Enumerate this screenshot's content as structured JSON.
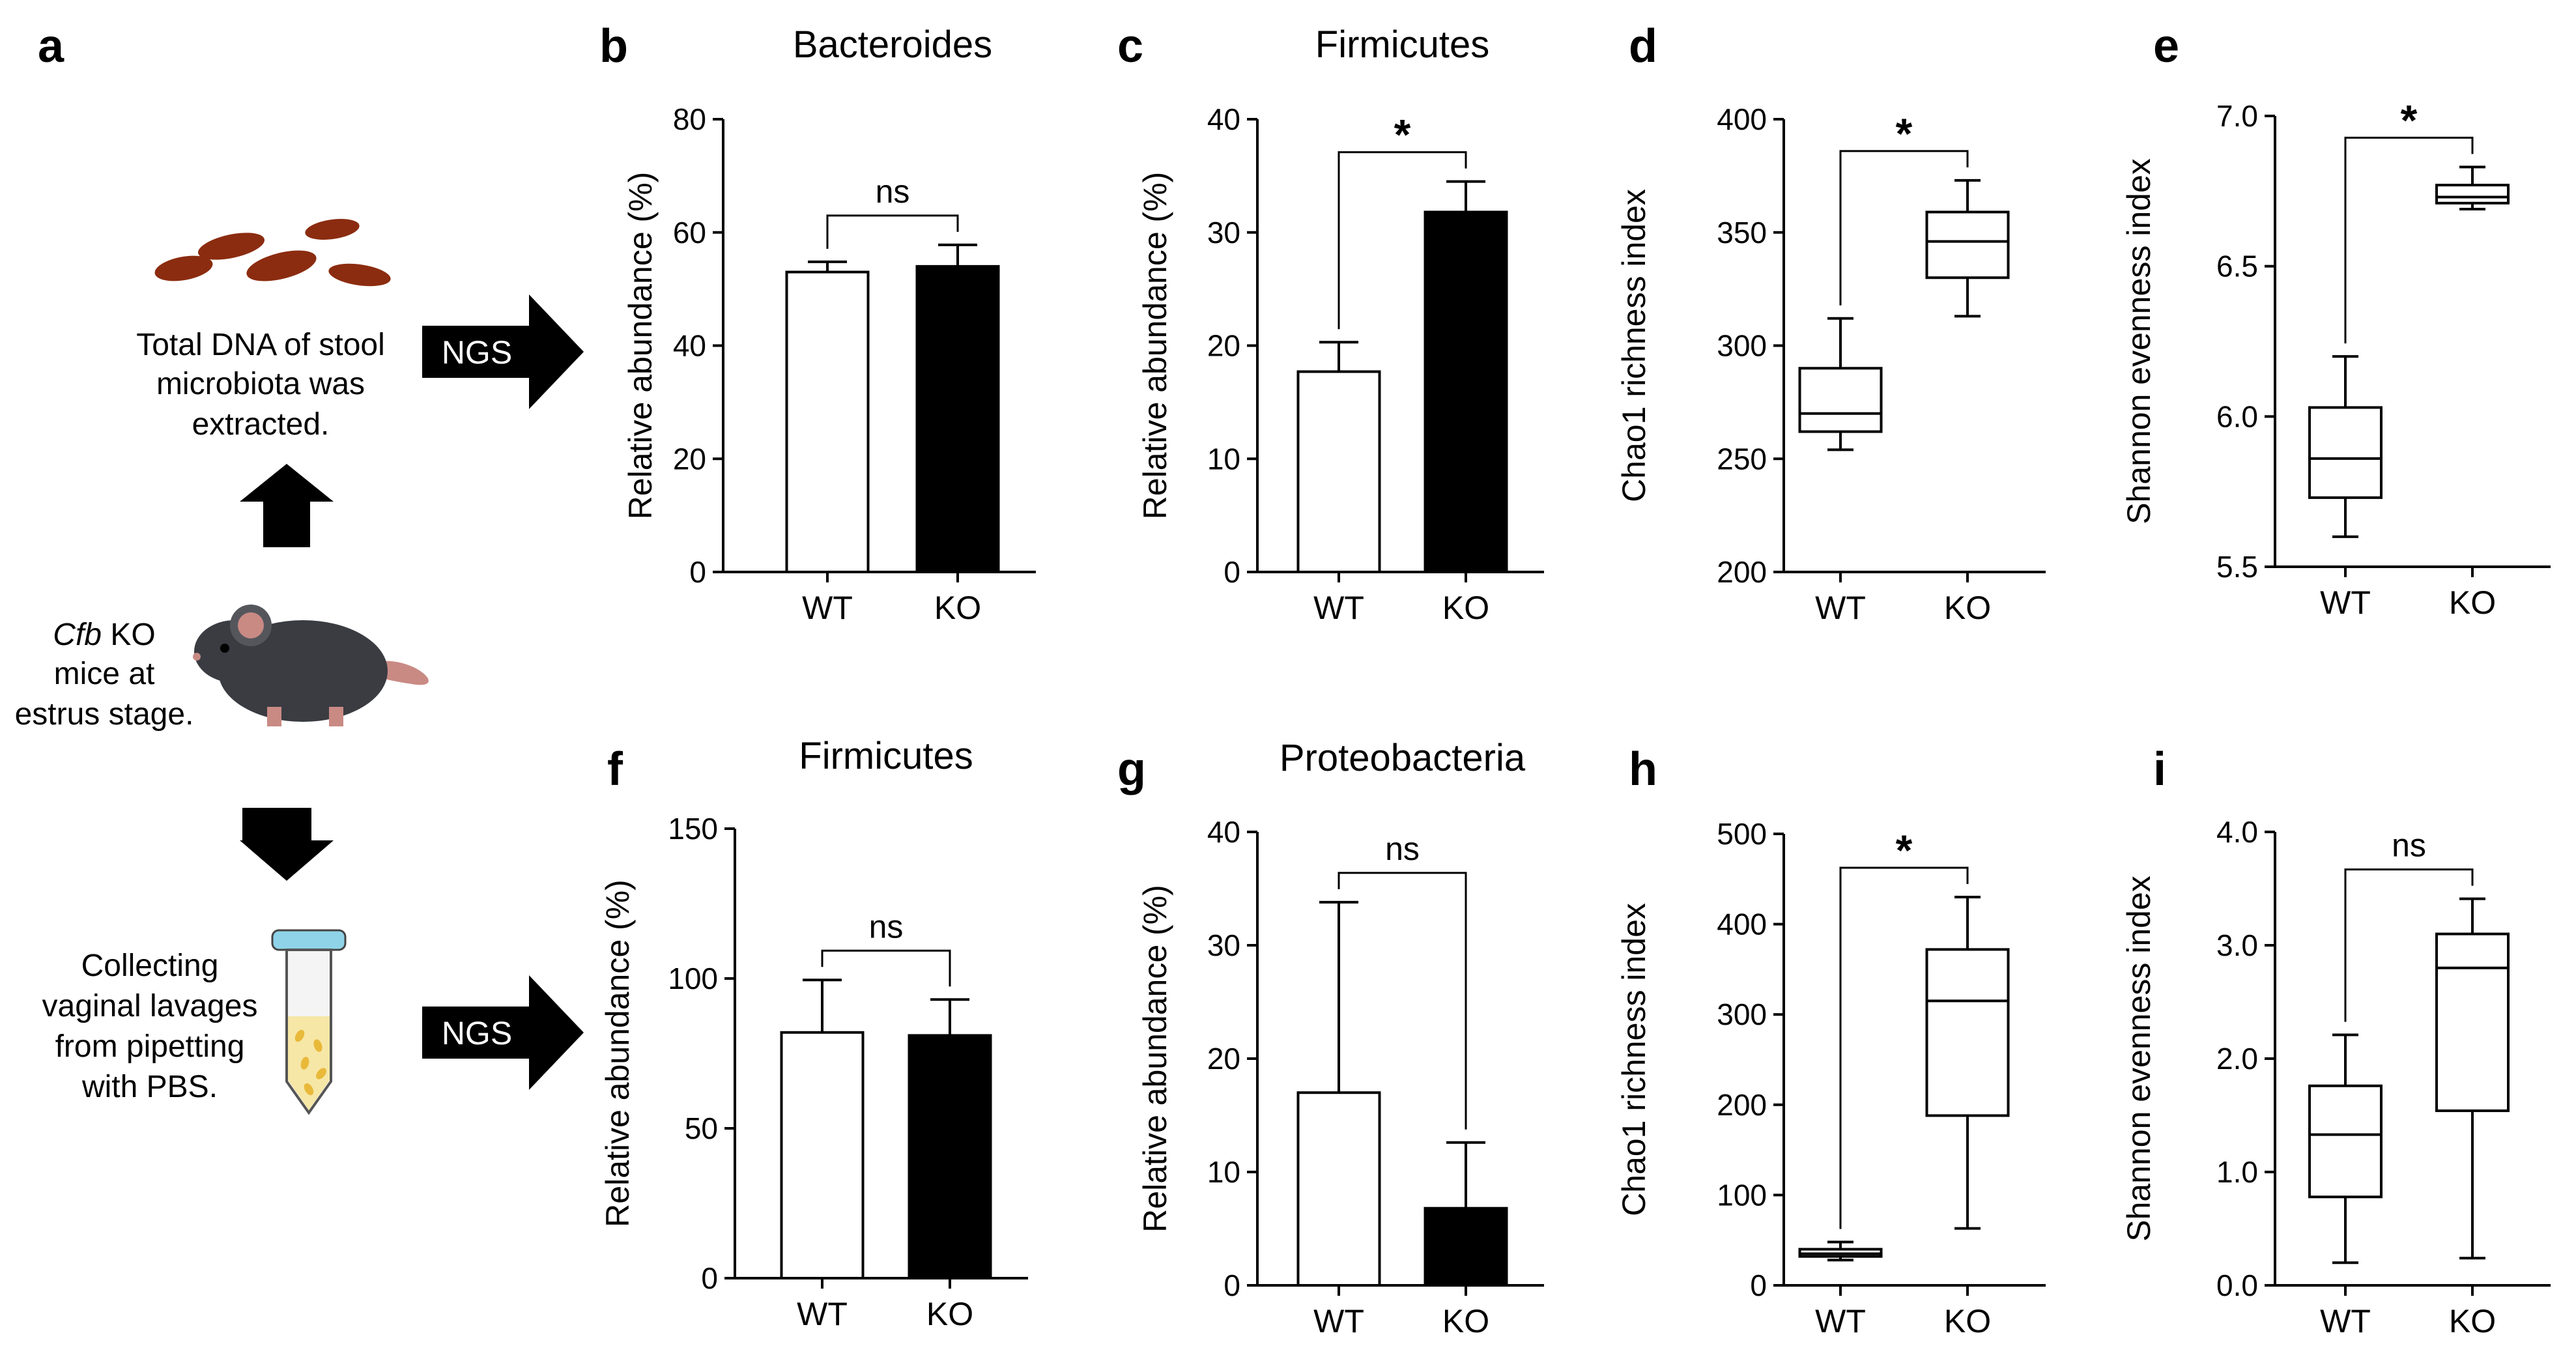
{
  "workflow": {
    "panel_letter": "a",
    "stool_caption": [
      "Total DNA of stool",
      "microbiota was",
      "extracted."
    ],
    "ngs_label": "NGS",
    "mouse_caption_line1_italic": "Cfb",
    "mouse_caption_line1_rest": " KO",
    "mouse_caption_rest": [
      "mice at",
      "estrus stage."
    ],
    "lavage_caption": [
      "Collecting",
      "vaginal lavages",
      "from pipetting",
      "with PBS."
    ],
    "colors": {
      "stool": "#8b2c10",
      "arrow": "#000000",
      "mouse_body": "#3a3c42",
      "mouse_ear": "#c98a84",
      "tube_cap": "#8fd3e8",
      "tube_fluid": "#f6e7a6",
      "cells": "#e9b93a"
    }
  },
  "chart_data": [
    {
      "panel": "b",
      "type": "bar",
      "title": "Bacteroides",
      "ylabel": "Relative abundance (%)",
      "ylim": [
        0,
        80
      ],
      "yticks": [
        "0",
        "20",
        "40",
        "60",
        "80"
      ],
      "categories": [
        "WT",
        "KO"
      ],
      "values": [
        53,
        54
      ],
      "errors": [
        1.8,
        3.8
      ],
      "fills": [
        "#ffffff",
        "#000000"
      ],
      "significance": "ns"
    },
    {
      "panel": "c",
      "type": "bar",
      "title": "Firmicutes",
      "ylabel": "Relative abundance (%)",
      "ylim": [
        0,
        40
      ],
      "yticks": [
        "0",
        "10",
        "20",
        "30",
        "40"
      ],
      "categories": [
        "WT",
        "KO"
      ],
      "values": [
        17.7,
        31.8
      ],
      "errors": [
        2.6,
        2.7
      ],
      "fills": [
        "#ffffff",
        "#000000"
      ],
      "significance": "*"
    },
    {
      "panel": "d",
      "type": "box",
      "title": "",
      "ylabel": "Chao1 richness index",
      "ylim": [
        200,
        400
      ],
      "yticks": [
        "200",
        "250",
        "300",
        "350",
        "400"
      ],
      "categories": [
        "WT",
        "KO"
      ],
      "boxes": [
        {
          "min": 254,
          "q1": 262,
          "median": 270,
          "q3": 290,
          "max": 312
        },
        {
          "min": 313,
          "q1": 330,
          "median": 346,
          "q3": 359,
          "max": 373
        }
      ],
      "significance": "*"
    },
    {
      "panel": "e",
      "type": "box",
      "title": "",
      "ylabel": "Shannon evenness index",
      "ylim": [
        5.5,
        7.0
      ],
      "yticks": [
        "5.5",
        "6.0",
        "6.5",
        "7.0"
      ],
      "categories": [
        "WT",
        "KO"
      ],
      "boxes": [
        {
          "min": 5.6,
          "q1": 5.73,
          "median": 5.86,
          "q3": 6.03,
          "max": 6.2
        },
        {
          "min": 6.69,
          "q1": 6.71,
          "median": 6.73,
          "q3": 6.77,
          "max": 6.83
        }
      ],
      "significance": "*"
    },
    {
      "panel": "f",
      "type": "bar",
      "title": "Firmicutes",
      "ylabel": "Relative abundance (%)",
      "ylim": [
        0,
        150
      ],
      "yticks": [
        "0",
        "50",
        "100",
        "150"
      ],
      "categories": [
        "WT",
        "KO"
      ],
      "values": [
        82,
        81
      ],
      "errors": [
        17.5,
        12
      ],
      "fills": [
        "#ffffff",
        "#000000"
      ],
      "significance": "ns"
    },
    {
      "panel": "g",
      "type": "bar",
      "title": "Proteobacteria",
      "ylabel": "Relative abundance (%)",
      "ylim": [
        0,
        40
      ],
      "yticks": [
        "0",
        "10",
        "20",
        "30",
        "40"
      ],
      "categories": [
        "WT",
        "KO"
      ],
      "values": [
        17,
        6.8
      ],
      "errors": [
        16.8,
        5.8
      ],
      "fills": [
        "#ffffff",
        "#000000"
      ],
      "significance": "ns"
    },
    {
      "panel": "h",
      "type": "box",
      "title": "",
      "ylabel": "Chao1 richness index",
      "ylim": [
        0,
        500
      ],
      "yticks": [
        "0",
        "100",
        "200",
        "300",
        "400",
        "500"
      ],
      "categories": [
        "WT",
        "KO"
      ],
      "boxes": [
        {
          "min": 28,
          "q1": 32,
          "median": 35,
          "q3": 40,
          "max": 48
        },
        {
          "min": 63,
          "q1": 188,
          "median": 315,
          "q3": 372,
          "max": 430
        }
      ],
      "significance": "*"
    },
    {
      "panel": "i",
      "type": "box",
      "title": "",
      "ylabel": "Shannon evenness index",
      "ylim": [
        0,
        4.0
      ],
      "yticks": [
        "0.0",
        "1.0",
        "2.0",
        "3.0",
        "4.0"
      ],
      "categories": [
        "WT",
        "KO"
      ],
      "boxes": [
        {
          "min": 0.2,
          "q1": 0.78,
          "median": 1.33,
          "q3": 1.76,
          "max": 2.21
        },
        {
          "min": 0.24,
          "q1": 1.54,
          "median": 2.8,
          "q3": 3.1,
          "max": 3.41
        }
      ],
      "significance": "ns"
    }
  ]
}
